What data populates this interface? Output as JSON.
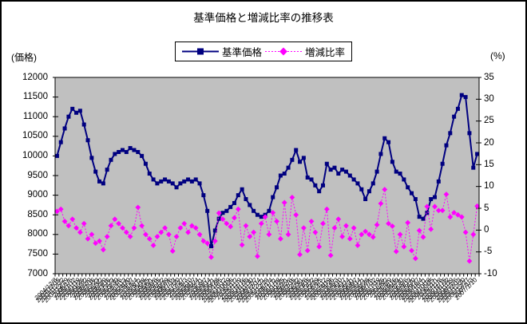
{
  "title": "基準価格と増減比率の推移表",
  "legend": [
    {
      "label": "基準価格",
      "color": "#000080",
      "marker": "square",
      "line": "solid"
    },
    {
      "label": "増減比率",
      "color": "#FF00FF",
      "marker": "diamond",
      "line": "dotted"
    }
  ],
  "left_axis": {
    "unit": "(価格)",
    "min": 7000,
    "max": 12000,
    "ticks": [
      "12000",
      "11500",
      "11000",
      "10500",
      "10000",
      "9500",
      "9000",
      "8500",
      "8000",
      "7500",
      "7000"
    ]
  },
  "right_axis": {
    "unit": "(%)",
    "min": -10,
    "max": 35,
    "ticks": [
      "35",
      "30",
      "25",
      "20",
      "15",
      "10",
      "5",
      "0",
      "-5",
      "-10"
    ]
  },
  "chart_data": {
    "type": "line",
    "plot_bg": "#C0C0C0",
    "grid": "off",
    "legend_position": "top-center",
    "x": [
      "2004/12/8",
      "2004/12/15",
      "2004/12/22",
      "2004/12/29",
      "2005/1/5",
      "2005/1/12",
      "2005/1/19",
      "2005/1/26",
      "2005/2/2",
      "2005/2/9",
      "2005/2/16",
      "2005/2/23",
      "2005/3/2",
      "2005/3/9",
      "2005/3/16",
      "2005/3/23",
      "2005/3/30",
      "2005/4/6",
      "2005/4/13",
      "2005/4/20",
      "2005/4/27",
      "2005/5/4",
      "2005/5/11",
      "2005/5/18",
      "2005/5/25",
      "2005/6/1",
      "2005/6/8",
      "2005/6/15",
      "2005/6/22",
      "2005/6/29",
      "2005/7/6",
      "2005/7/13",
      "2005/7/20",
      "2005/7/27",
      "2005/8/3",
      "2005/8/10",
      "2005/8/17",
      "2005/8/24",
      "2005/8/31",
      "2005/9/7",
      "2005/9/14",
      "2005/9/21",
      "2005/9/28",
      "2005/10/5",
      "2005/10/12",
      "2005/10/19",
      "2005/10/26",
      "2005/11/2",
      "2005/11/9",
      "2005/11/16",
      "2005/11/23",
      "2005/11/30",
      "2005/12/7",
      "2005/12/14",
      "2005/12/21",
      "2005/12/28",
      "2006/1/4",
      "2006/1/11",
      "2006/1/18",
      "2006/1/25",
      "2006/2/1",
      "2006/2/8",
      "2006/2/15",
      "2006/2/22",
      "2006/3/1",
      "2006/3/8",
      "2006/3/15",
      "2006/3/22",
      "2006/3/29",
      "2006/4/5",
      "2006/4/12",
      "2006/4/19",
      "2006/4/26",
      "2006/5/3",
      "2006/5/10",
      "2006/5/17",
      "2006/5/24",
      "2006/5/31",
      "2006/6/7",
      "2006/6/14",
      "2006/6/21",
      "2006/6/28",
      "2006/7/5",
      "2006/7/12",
      "2006/7/19",
      "2006/7/26",
      "2006/8/2",
      "2006/8/9",
      "2006/8/16",
      "2006/8/23",
      "2006/8/30",
      "2006/9/6",
      "2006/9/13",
      "2006/9/20",
      "2006/9/27",
      "2006/10/4",
      "2006/10/11",
      "2006/10/18",
      "2006/10/25",
      "2006/11/1",
      "2006/11/8",
      "2006/11/15",
      "2006/11/22",
      "2006/11/29",
      "2006/12/6",
      "2006/12/13",
      "2006/12/20",
      "2006/12/27",
      "2007/1/3",
      "2007/1/10"
    ],
    "series": [
      {
        "name": "基準価格",
        "axis": "left",
        "color": "#000080",
        "marker": "square",
        "line": "solid",
        "width": 2,
        "values": [
          10000,
          10350,
          10700,
          11000,
          11200,
          11100,
          11150,
          10800,
          10400,
          9950,
          9600,
          9350,
          9300,
          9650,
          9900,
          10050,
          10100,
          10150,
          10100,
          10200,
          10150,
          10100,
          10000,
          9800,
          9550,
          9400,
          9300,
          9350,
          9400,
          9350,
          9300,
          9200,
          9300,
          9350,
          9400,
          9350,
          9400,
          9300,
          9000,
          8600,
          7700,
          8100,
          8400,
          8550,
          8600,
          8700,
          8800,
          9000,
          9150,
          8900,
          8750,
          8600,
          8500,
          8450,
          8500,
          8600,
          8950,
          9200,
          9500,
          9550,
          9700,
          9900,
          10150,
          9850,
          9950,
          9450,
          9400,
          9250,
          9100,
          9250,
          9800,
          9650,
          9700,
          9550,
          9650,
          9600,
          9500,
          9400,
          9300,
          9150,
          8900,
          9100,
          9300,
          9600,
          10050,
          10450,
          10350,
          9850,
          9600,
          9550,
          9400,
          9200,
          9050,
          8900,
          8450,
          8400,
          8550,
          8900,
          8950,
          9350,
          9800,
          10270,
          10580,
          11000,
          11200,
          11550,
          11500,
          10580,
          9700,
          10050
        ]
      },
      {
        "name": "増減比率",
        "axis": "right",
        "color": "#FF00FF",
        "marker": "diamond",
        "line": "dotted",
        "width": 1,
        "values": [
          4.3,
          4.8,
          2.0,
          1.0,
          2.5,
          0.5,
          -0.5,
          1.5,
          -2.0,
          -1.0,
          -3.0,
          -2.5,
          -4.5,
          -1.5,
          1.0,
          2.5,
          1.5,
          0.5,
          -0.5,
          -1.5,
          0.5,
          5.2,
          1.0,
          -1.0,
          -2.0,
          -3.5,
          -1.5,
          -0.5,
          0.5,
          -1.0,
          -4.8,
          -1.5,
          0.5,
          1.5,
          -0.5,
          1.0,
          0.5,
          -1.0,
          -2.5,
          -3.0,
          -6.2,
          -2.5,
          3.9,
          2.5,
          1.5,
          0.8,
          2.8,
          4.8,
          -3.4,
          1.0,
          -1.5,
          -0.5,
          -6.0,
          1.5,
          3.0,
          -1.0,
          4.0,
          2.0,
          -2.0,
          6.3,
          -1.0,
          7.5,
          3.5,
          -5.6,
          0.5,
          -4.7,
          2.0,
          -0.5,
          -3.8,
          1.5,
          4.8,
          -5.8,
          0.5,
          2.5,
          -1.5,
          1.0,
          -2.0,
          0.5,
          -3.5,
          -1.0,
          -0.3,
          -1.0,
          -1.6,
          1.2,
          6.1,
          9.3,
          1.5,
          0.9,
          -4.9,
          -1.0,
          -3.8,
          1.7,
          -4.7,
          -6.5,
          -0.1,
          -1.6,
          5.4,
          0.2,
          5.4,
          4.5,
          4.5,
          8.2,
          3.0,
          4.0,
          3.5,
          3.0,
          -0.5,
          -7.1,
          -1.0,
          5.5
        ]
      }
    ]
  }
}
